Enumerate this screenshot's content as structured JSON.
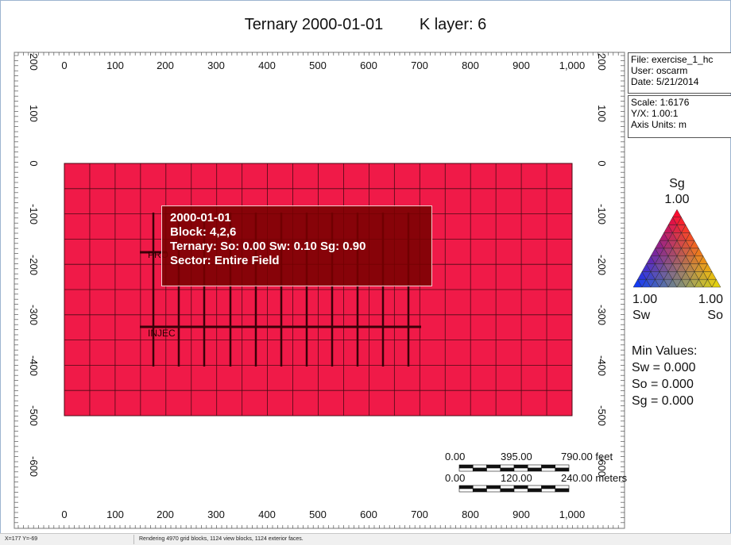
{
  "title": {
    "main": "Ternary 2000-01-01",
    "layer": "K layer: 6"
  },
  "axes": {
    "x_ticks": [
      "0",
      "100",
      "200",
      "300",
      "400",
      "500",
      "600",
      "700",
      "800",
      "900",
      "1,000"
    ],
    "y_ticks": [
      "200",
      "100",
      "0",
      "-100",
      "-200",
      "-300",
      "-400",
      "-500",
      "-600"
    ],
    "units": "m"
  },
  "info": {
    "file": "File: exercise_1_hc",
    "user": "User:  oscarm",
    "date": "Date: 5/21/2014",
    "scale": "Scale: 1:6176",
    "yx": "Y/X: 1.00:1",
    "axis_units": "Axis Units: m"
  },
  "tooltip": {
    "date": "2000-01-01",
    "block": "Block:  4,2,6",
    "ternary": "Ternary: So: 0.00 Sw: 0.10 Sg: 0.90",
    "sector": "Sector: Entire  Field"
  },
  "wells": {
    "producer_label": "PRO",
    "injector_label": "INJEC"
  },
  "ternary_legend": {
    "top_name": "Sg",
    "top_value": "1.00",
    "left_value": "1.00",
    "left_name": "Sw",
    "right_value": "1.00",
    "right_name": "So"
  },
  "min_values": {
    "title": "Min Values:",
    "sw": "Sw = 0.000",
    "so": "So = 0.000",
    "sg": "Sg = 0.000"
  },
  "scale_bar": {
    "feet": [
      "0.00",
      "395.00",
      "790.00 feet"
    ],
    "meters": [
      "0.00",
      "120.00",
      "240.00 meters"
    ]
  },
  "status": {
    "coords": "X=177 Y=-69",
    "message": "Rendering 4970 grid blocks, 1124 view blocks, 1124 exterior faces."
  },
  "colors": {
    "grid_fill": "#f01a48",
    "grid_line": "#4a0a14",
    "tooltip_bg": "#780000"
  }
}
